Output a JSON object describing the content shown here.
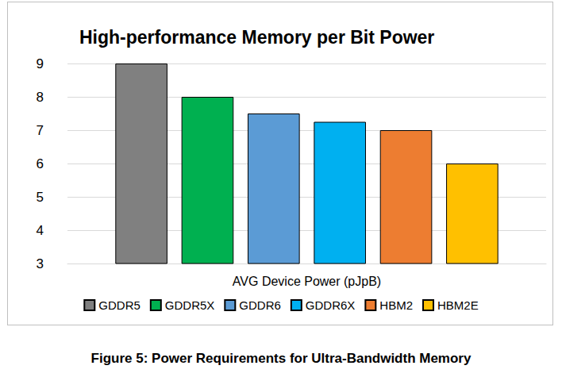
{
  "chart_data": {
    "type": "bar",
    "title": "High-performance Memory per Bit Power",
    "caption": "Figure 5: Power Requirements for Ultra-Bandwidth Memory",
    "categories": [
      "AVG Device Power (pJpB)"
    ],
    "series": [
      {
        "name": "GDDR5",
        "color": "#808080",
        "values": [
          9
        ]
      },
      {
        "name": "GDDR5X",
        "color": "#00b050",
        "values": [
          8
        ]
      },
      {
        "name": "GDDR6",
        "color": "#5b9bd5",
        "values": [
          7.5
        ]
      },
      {
        "name": "GDDR6X",
        "color": "#00b0f0",
        "values": [
          7.25
        ]
      },
      {
        "name": "HBM2",
        "color": "#ed7d31",
        "values": [
          7
        ]
      },
      {
        "name": "HBM2E",
        "color": "#ffc000",
        "values": [
          6
        ]
      }
    ],
    "ylim": [
      3,
      9
    ],
    "yticks": [
      3,
      4,
      5,
      6,
      7,
      8,
      9
    ],
    "grid": true,
    "legend": "bottom"
  }
}
